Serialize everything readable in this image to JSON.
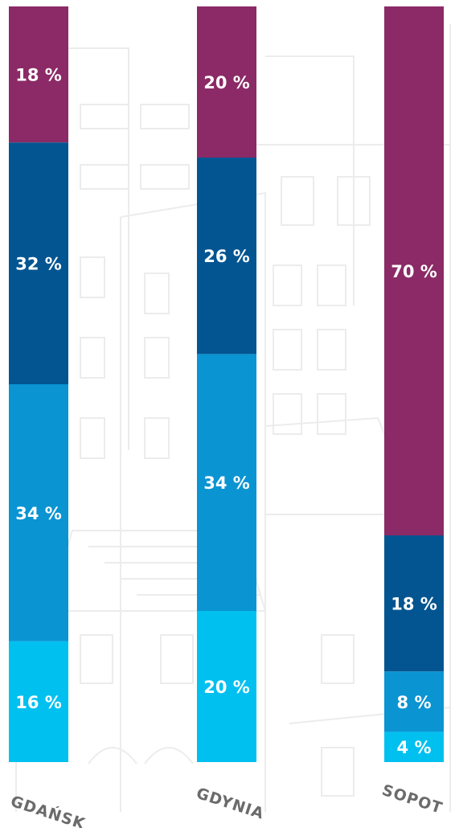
{
  "chart_data": {
    "type": "bar",
    "stacked": true,
    "unit": "%",
    "categories": [
      "GDAŃSK",
      "GDYNIA",
      "SOPOT"
    ],
    "series": [
      {
        "values": [
          16,
          20,
          4
        ],
        "labels": [
          "16 %",
          "20 %",
          "4 %"
        ],
        "color": "#00c0f0"
      },
      {
        "values": [
          34,
          34,
          8
        ],
        "labels": [
          "34 %",
          "34 %",
          "8 %"
        ],
        "color": "#0a94d2"
      },
      {
        "values": [
          32,
          26,
          18
        ],
        "labels": [
          "32 %",
          "26 %",
          "18 %"
        ],
        "color": "#035591"
      },
      {
        "values": [
          18,
          20,
          70
        ],
        "labels": [
          "18 %",
          "20 %",
          "70 %"
        ],
        "color": "#8b2a66"
      }
    ],
    "ylim": [
      0,
      100
    ],
    "grid": false,
    "legend": "none"
  }
}
